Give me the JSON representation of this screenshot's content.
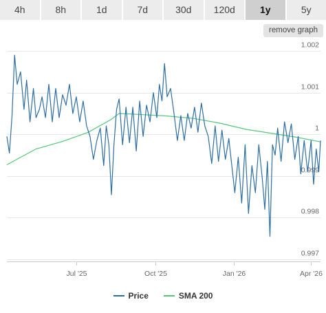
{
  "timeframes": {
    "items": [
      "4h",
      "8h",
      "1d",
      "7d",
      "30d",
      "120d",
      "1y",
      "5y"
    ],
    "active": "1y"
  },
  "actions": {
    "remove_graph_label": "remove graph"
  },
  "colors": {
    "price": "#2c6da4",
    "sma": "#50c878",
    "grid": "#e6e6e6",
    "axis": "#cccccc"
  },
  "chart_data": {
    "type": "line",
    "x_range": [
      "2025-04-11",
      "2026-04-12"
    ],
    "x_ticks": [
      {
        "date": "2025-07-01",
        "label": "Jul '25"
      },
      {
        "date": "2025-10-01",
        "label": "Oct '25"
      },
      {
        "date": "2026-01-01",
        "label": "Jan '26"
      },
      {
        "date": "2026-04-01",
        "label": "Apr '26"
      }
    ],
    "ylim": [
      0.99695,
      1.0022
    ],
    "y_ticks": [
      {
        "value": 0.997,
        "label": "0.997"
      },
      {
        "value": 0.998,
        "label": "0.998"
      },
      {
        "value": 0.999,
        "label": "0.999"
      },
      {
        "value": 1.0,
        "label": "1"
      },
      {
        "value": 1.001,
        "label": "1.001"
      },
      {
        "value": 1.002,
        "label": "1.002"
      }
    ],
    "series": [
      {
        "name": "Price",
        "points": [
          [
            "2025-04-11",
            0.99995
          ],
          [
            "2025-04-14",
            0.99955
          ],
          [
            "2025-04-17",
            1.00045
          ],
          [
            "2025-04-20",
            1.0019
          ],
          [
            "2025-04-23",
            1.0012
          ],
          [
            "2025-04-27",
            1.0015
          ],
          [
            "2025-05-01",
            1.0006
          ],
          [
            "2025-05-04",
            1.0013
          ],
          [
            "2025-05-08",
            1.0003
          ],
          [
            "2025-05-12",
            1.0011
          ],
          [
            "2025-05-15",
            1.0004
          ],
          [
            "2025-05-19",
            1.0006
          ],
          [
            "2025-05-22",
            1.0009
          ],
          [
            "2025-05-26",
            1.0004
          ],
          [
            "2025-05-30",
            1.0012
          ],
          [
            "2025-06-03",
            1.0003
          ],
          [
            "2025-06-07",
            1.0011
          ],
          [
            "2025-06-11",
            1.0004
          ],
          [
            "2025-06-15",
            1.00095
          ],
          [
            "2025-06-19",
            1.0007
          ],
          [
            "2025-06-23",
            1.0012
          ],
          [
            "2025-06-27",
            1.0005
          ],
          [
            "2025-07-01",
            1.0009
          ],
          [
            "2025-07-05",
            1.0003
          ],
          [
            "2025-07-09",
            1.0008
          ],
          [
            "2025-07-13",
            1.0002
          ],
          [
            "2025-07-17",
            0.99995
          ],
          [
            "2025-07-21",
            0.9994
          ],
          [
            "2025-07-25",
            0.99985
          ],
          [
            "2025-07-29",
            1.00015
          ],
          [
            "2025-08-02",
            0.99925
          ],
          [
            "2025-08-05",
            1.0002
          ],
          [
            "2025-08-08",
            0.99975
          ],
          [
            "2025-08-11",
            0.99855
          ],
          [
            "2025-08-14",
            0.99975
          ],
          [
            "2025-08-17",
            1.0006
          ],
          [
            "2025-08-20",
            1.00085
          ],
          [
            "2025-08-24",
            0.99975
          ],
          [
            "2025-08-28",
            1.00065
          ],
          [
            "2025-09-01",
            0.9998
          ],
          [
            "2025-09-05",
            1.00065
          ],
          [
            "2025-09-09",
            0.9996
          ],
          [
            "2025-09-13",
            1.0008
          ],
          [
            "2025-09-17",
            0.99995
          ],
          [
            "2025-09-21",
            1.0007
          ],
          [
            "2025-09-25",
            1.0003
          ],
          [
            "2025-09-29",
            1.001
          ],
          [
            "2025-10-03",
            1.0004
          ],
          [
            "2025-10-06",
            1.0012
          ],
          [
            "2025-10-09",
            1.0008
          ],
          [
            "2025-10-12",
            1.0017
          ],
          [
            "2025-10-15",
            1.0009
          ],
          [
            "2025-10-19",
            1.0011
          ],
          [
            "2025-10-23",
            1.0005
          ],
          [
            "2025-10-27",
            0.99985
          ],
          [
            "2025-10-31",
            1.00045
          ],
          [
            "2025-11-04",
            0.99985
          ],
          [
            "2025-11-08",
            1.0005
          ],
          [
            "2025-11-12",
            1.00015
          ],
          [
            "2025-11-16",
            1.00065
          ],
          [
            "2025-11-20",
            1.00005
          ],
          [
            "2025-11-24",
            1.00075
          ],
          [
            "2025-11-28",
            1.0002
          ],
          [
            "2025-12-02",
            0.99995
          ],
          [
            "2025-12-06",
            0.9993
          ],
          [
            "2025-12-10",
            1.0002
          ],
          [
            "2025-12-14",
            0.99935
          ],
          [
            "2025-12-18",
            1.0001
          ],
          [
            "2025-12-22",
            0.9994
          ],
          [
            "2025-12-26",
            0.9999
          ],
          [
            "2025-12-30",
            0.99915
          ],
          [
            "2026-01-02",
            0.9986
          ],
          [
            "2026-01-06",
            0.99945
          ],
          [
            "2026-01-10",
            0.99835
          ],
          [
            "2026-01-14",
            0.99975
          ],
          [
            "2026-01-18",
            0.9981
          ],
          [
            "2026-01-22",
            0.99925
          ],
          [
            "2026-01-26",
            0.9986
          ],
          [
            "2026-01-30",
            0.99975
          ],
          [
            "2026-02-03",
            0.99895
          ],
          [
            "2026-02-06",
            0.9982
          ],
          [
            "2026-02-09",
            0.99935
          ],
          [
            "2026-02-12",
            0.99755
          ],
          [
            "2026-02-15",
            0.99975
          ],
          [
            "2026-02-18",
            0.9995
          ],
          [
            "2026-02-21",
            1.00015
          ],
          [
            "2026-02-25",
            0.99935
          ],
          [
            "2026-03-01",
            1.0003
          ],
          [
            "2026-03-05",
            0.9998
          ],
          [
            "2026-03-09",
            1.00025
          ],
          [
            "2026-03-13",
            0.9994
          ],
          [
            "2026-03-17",
            0.99995
          ],
          [
            "2026-03-20",
            0.99905
          ],
          [
            "2026-03-24",
            0.99985
          ],
          [
            "2026-03-28",
            0.9991
          ],
          [
            "2026-04-01",
            0.99985
          ],
          [
            "2026-04-04",
            0.9988
          ],
          [
            "2026-04-07",
            0.99965
          ],
          [
            "2026-04-10",
            0.9991
          ],
          [
            "2026-04-12",
            0.99985
          ]
        ]
      },
      {
        "name": "SMA 200",
        "points": [
          [
            "2025-04-11",
            0.99927
          ],
          [
            "2025-05-15",
            0.99965
          ],
          [
            "2025-06-15",
            0.99983
          ],
          [
            "2025-07-15",
            1.00005
          ],
          [
            "2025-08-10",
            1.00035
          ],
          [
            "2025-08-20",
            1.0005
          ],
          [
            "2025-09-10",
            1.00048
          ],
          [
            "2025-10-15",
            1.00044
          ],
          [
            "2025-11-15",
            1.00038
          ],
          [
            "2025-12-15",
            1.00027
          ],
          [
            "2026-01-15",
            1.00012
          ],
          [
            "2026-02-15",
            1.00002
          ],
          [
            "2026-03-15",
            0.99993
          ],
          [
            "2026-04-12",
            0.99982
          ]
        ]
      }
    ],
    "grid": true,
    "legend": "bottom-center"
  }
}
